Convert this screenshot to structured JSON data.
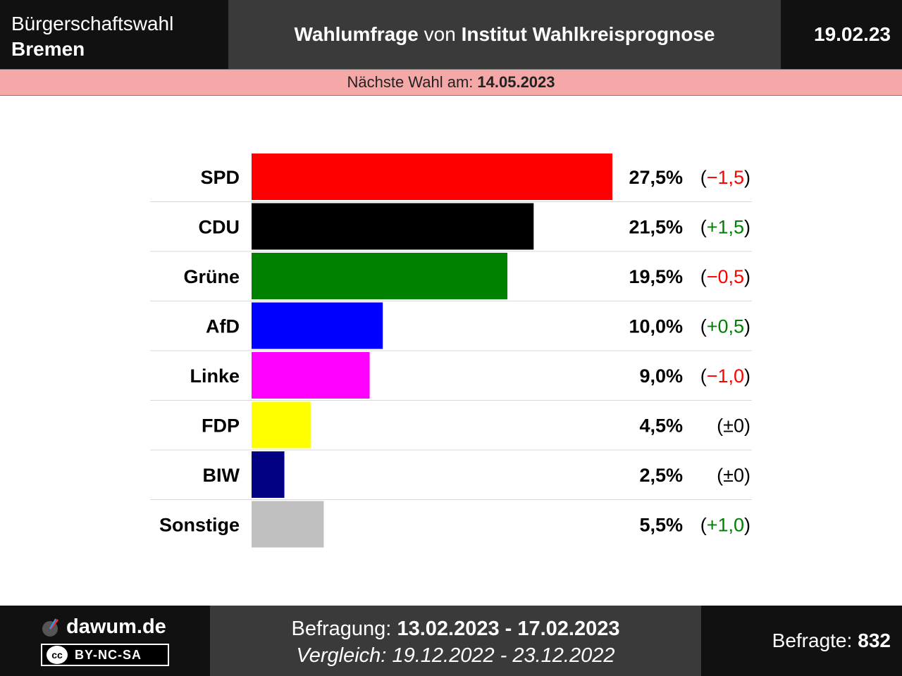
{
  "header": {
    "election_type": "Bürgerschaftswahl",
    "region": "Bremen",
    "title_part1": "Wahlumfrage",
    "title_part2": "von",
    "title_part3": "Institut Wahlkreisprognose",
    "date": "19.02.23"
  },
  "next_election": {
    "label": "Nächste Wahl am:",
    "date": "14.05.2023"
  },
  "chart_data": {
    "type": "bar",
    "orientation": "horizontal",
    "categories": [
      "SPD",
      "CDU",
      "Grüne",
      "AfD",
      "Linke",
      "FDP",
      "BIW",
      "Sonstige"
    ],
    "values": [
      27.5,
      21.5,
      19.5,
      10.0,
      9.0,
      4.5,
      2.5,
      5.5
    ],
    "value_labels": [
      "27,5%",
      "21,5%",
      "19,5%",
      "10,0%",
      "9,0%",
      "4,5%",
      "2,5%",
      "5,5%"
    ],
    "changes": [
      "−1,5",
      "+1,5",
      "−0,5",
      "+0,5",
      "−1,0",
      "±0",
      "±0",
      "+1,0"
    ],
    "change_direction": [
      "down",
      "up",
      "down",
      "up",
      "down",
      "none",
      "none",
      "up"
    ],
    "colors": [
      "#ff0000",
      "#000000",
      "#008000",
      "#0000ff",
      "#ff00ff",
      "#ffff00",
      "#000080",
      "#c0c0c0"
    ],
    "change_colors": {
      "up": "#008000",
      "down": "#ff0000",
      "none": "#000000"
    },
    "xlim": [
      0,
      27.5
    ]
  },
  "footer": {
    "site": "dawum.de",
    "license": "BY-NC-SA",
    "license_icon": "cc-icon",
    "survey_label": "Befragung:",
    "survey_period": "13.02.2023 - 17.02.2023",
    "comparison_label": "Vergleich:",
    "comparison_period": "19.12.2022 - 23.12.2022",
    "respondents_label": "Befragte:",
    "respondents": "832"
  }
}
